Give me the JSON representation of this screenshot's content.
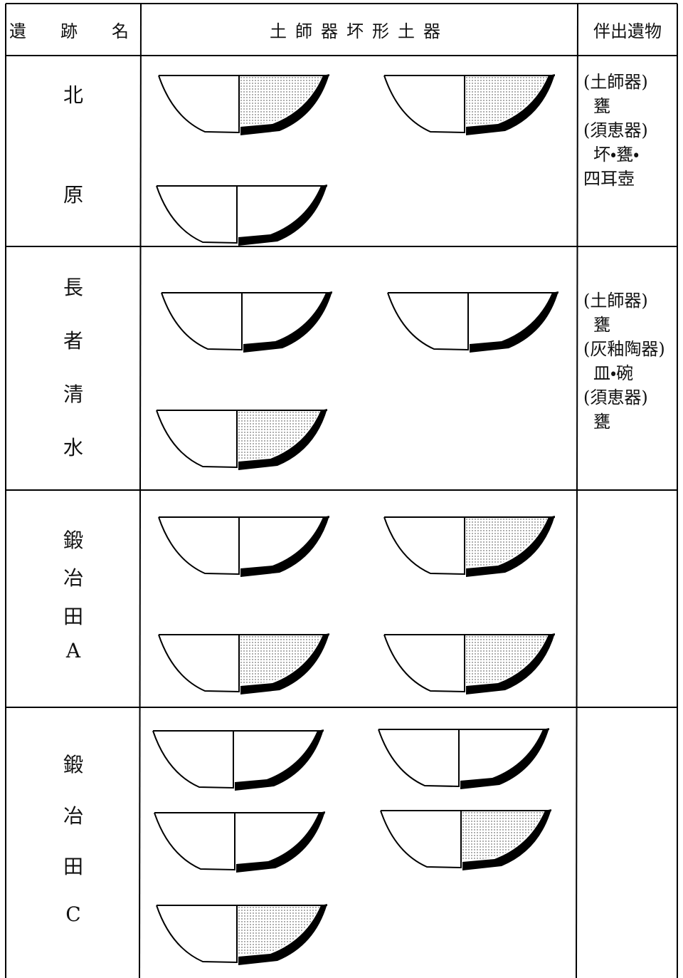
{
  "header": {
    "site": "遺　跡　名",
    "pottery": "土師器坏形土器",
    "finds": "伴出遺物"
  },
  "rows": [
    {
      "name": [
        "北",
        "原"
      ],
      "finds": [
        "(土師器)",
        "甕",
        "(須恵器)",
        "坏・甕・",
        "四耳壺"
      ]
    },
    {
      "name": [
        "長",
        "者",
        "清",
        "水"
      ],
      "finds": [
        "(土師器)",
        "甕",
        "(灰釉陶器)",
        "皿・碗",
        "(須恵器)",
        "甕"
      ]
    },
    {
      "name": [
        "鍛",
        "冶",
        "田",
        "A"
      ],
      "finds": []
    },
    {
      "name": [
        "鍛",
        "冶",
        "田",
        "C"
      ],
      "finds": []
    }
  ]
}
